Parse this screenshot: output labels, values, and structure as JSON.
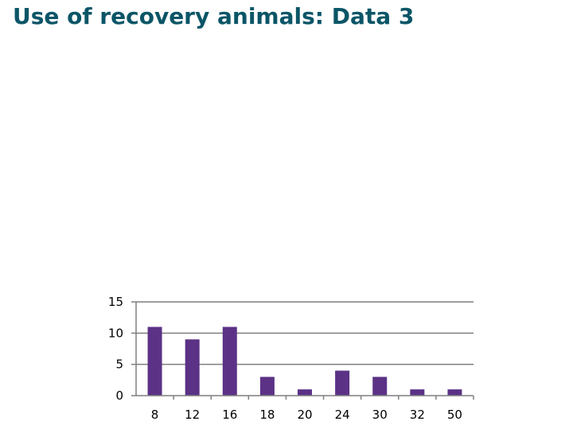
{
  "slide": {
    "title": "Use of recovery animals: Data 3"
  },
  "chart_data": {
    "type": "bar",
    "categories": [
      "8",
      "12",
      "16",
      "18",
      "20",
      "24",
      "30",
      "32",
      "50"
    ],
    "values": [
      11,
      9,
      11,
      3,
      1,
      4,
      3,
      1,
      1
    ],
    "ylim": [
      0,
      15
    ],
    "yticks": [
      0,
      5,
      10,
      15
    ],
    "grid": true,
    "legend": "none",
    "bar_color": "#5b3286",
    "grid_color": "#7f7f7f"
  }
}
